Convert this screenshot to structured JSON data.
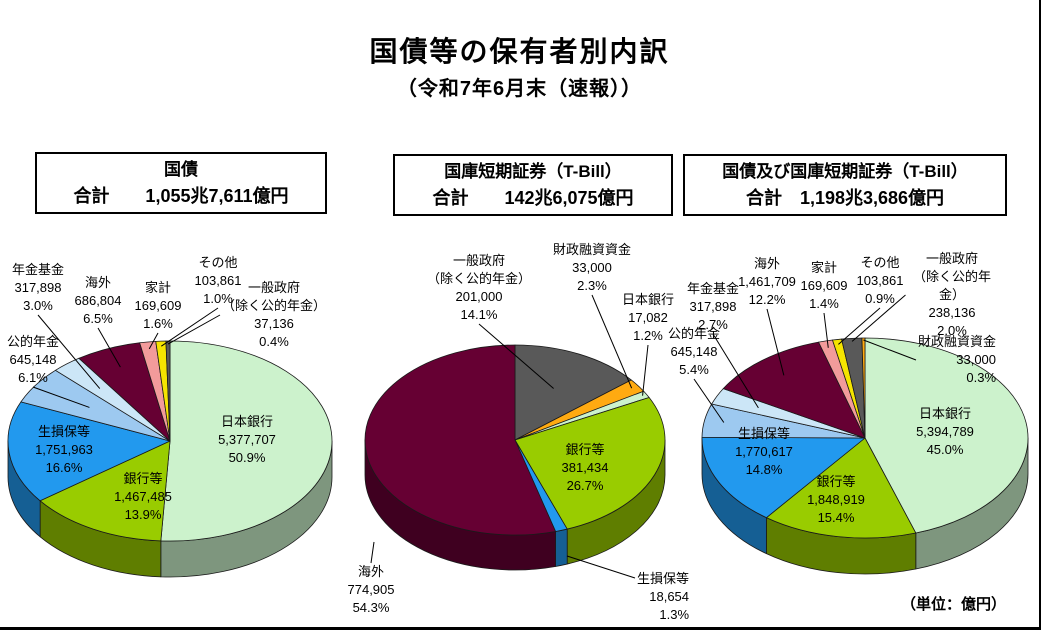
{
  "page_title": "国債等の保有者別内訳",
  "page_subtitle": "（令和7年6月末（速報））",
  "unit_note": "（単位：億円）",
  "chart_data": [
    {
      "type": "pie",
      "title": "国債",
      "total_label": "合計　　1,055兆7,611億円",
      "unit": "億円",
      "legend_position": "none",
      "labels": [
        "日本銀行",
        "銀行等",
        "生損保等",
        "公的年金",
        "年金基金",
        "海外",
        "家計",
        "その他",
        "一般政府\n（除く公的年金）"
      ],
      "values": [
        5377707,
        1467485,
        1751963,
        645148,
        317898,
        686804,
        169609,
        103861,
        37136
      ],
      "percents": [
        50.9,
        13.9,
        16.6,
        6.1,
        3.0,
        6.5,
        1.6,
        1.0,
        0.4
      ],
      "colors": [
        "#ccf2cc",
        "#99cc00",
        "#2299ee",
        "#9dc9f0",
        "#cce6f7",
        "#660033",
        "#f29b9b",
        "#f5e400",
        "#595959"
      ]
    },
    {
      "type": "pie",
      "title": "国庫短期証券（T-Bill）",
      "total_label": "合計　　142兆6,075億円",
      "unit": "億円",
      "legend_position": "none",
      "labels": [
        "一般政府\n（除く公的年金）",
        "財政融資資金",
        "日本銀行",
        "銀行等",
        "生損保等",
        "海外"
      ],
      "values": [
        201000,
        33000,
        17082,
        381434,
        18654,
        774905
      ],
      "percents": [
        14.1,
        2.3,
        1.2,
        26.7,
        1.3,
        54.3
      ],
      "colors": [
        "#595959",
        "#ffaa11",
        "#ccf2cc",
        "#99cc00",
        "#2299ee",
        "#660033"
      ]
    },
    {
      "type": "pie",
      "title": "国債及び国庫短期証券（T-Bill）",
      "total_label": "合計　1,198兆3,686億円",
      "unit": "億円",
      "legend_position": "none",
      "labels": [
        "日本銀行",
        "銀行等",
        "生損保等",
        "公的年金",
        "年金基金",
        "海外",
        "家計",
        "その他",
        "一般政府\n（除く公的年金）",
        "財政融資資金"
      ],
      "values": [
        5394789,
        1848919,
        1770617,
        645148,
        317898,
        1461709,
        169609,
        103861,
        238136,
        33000
      ],
      "percents": [
        45.0,
        15.4,
        14.8,
        5.4,
        2.7,
        12.2,
        1.4,
        0.9,
        2.0,
        0.3
      ],
      "colors": [
        "#ccf2cc",
        "#99cc00",
        "#2299ee",
        "#9dc9f0",
        "#cce6f7",
        "#660033",
        "#f29b9b",
        "#f5e400",
        "#595959",
        "#ffaa11"
      ]
    }
  ]
}
